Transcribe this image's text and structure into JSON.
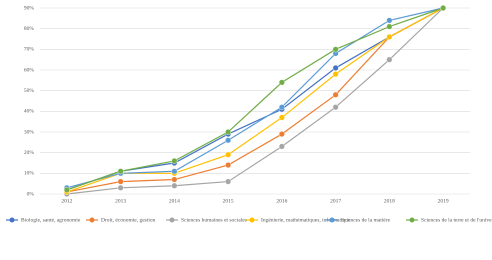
{
  "chart_data": {
    "type": "line",
    "x": [
      "2012",
      "2013",
      "2014",
      "2015",
      "2016",
      "2017",
      "2018",
      "2019"
    ],
    "ylim": [
      0,
      90
    ],
    "yticks": [
      {
        "value": 0,
        "label": "0%"
      },
      {
        "value": 10,
        "label": "10%"
      },
      {
        "value": 20,
        "label": "20%"
      },
      {
        "value": 30,
        "label": "30%"
      },
      {
        "value": 40,
        "label": "40%"
      },
      {
        "value": 50,
        "label": "50%"
      },
      {
        "value": 60,
        "label": "60%"
      },
      {
        "value": 70,
        "label": "70%"
      },
      {
        "value": 80,
        "label": "80%"
      },
      {
        "value": 90,
        "label": "90%"
      }
    ],
    "grid": true,
    "legend": "bottom",
    "series": [
      {
        "name": "Biologie, santé, agronomie",
        "color": "#4472c4",
        "values": [
          2,
          11,
          15,
          29,
          41,
          61,
          76,
          90
        ]
      },
      {
        "name": "Droit, économie, gestion",
        "color": "#ed7d31",
        "values": [
          1,
          6,
          7,
          14,
          29,
          48,
          76,
          90
        ]
      },
      {
        "name": "Sciences humaines et sociales",
        "color": "#a5a5a5",
        "values": [
          0,
          3,
          4,
          6,
          23,
          42,
          65,
          90
        ]
      },
      {
        "name": "Ingénierie, mathématiques, informatique",
        "color": "#ffc000",
        "values": [
          1,
          10,
          10,
          19,
          37,
          58,
          76,
          90
        ]
      },
      {
        "name": "Sciences de la matière",
        "color": "#5b9bd5",
        "values": [
          3,
          10,
          11,
          26,
          42,
          68,
          84,
          90
        ]
      },
      {
        "name": "Sciences de la terre et de l'univers",
        "color": "#70ad47",
        "values": [
          2,
          11,
          16,
          30,
          54,
          70,
          81,
          90
        ]
      }
    ]
  }
}
